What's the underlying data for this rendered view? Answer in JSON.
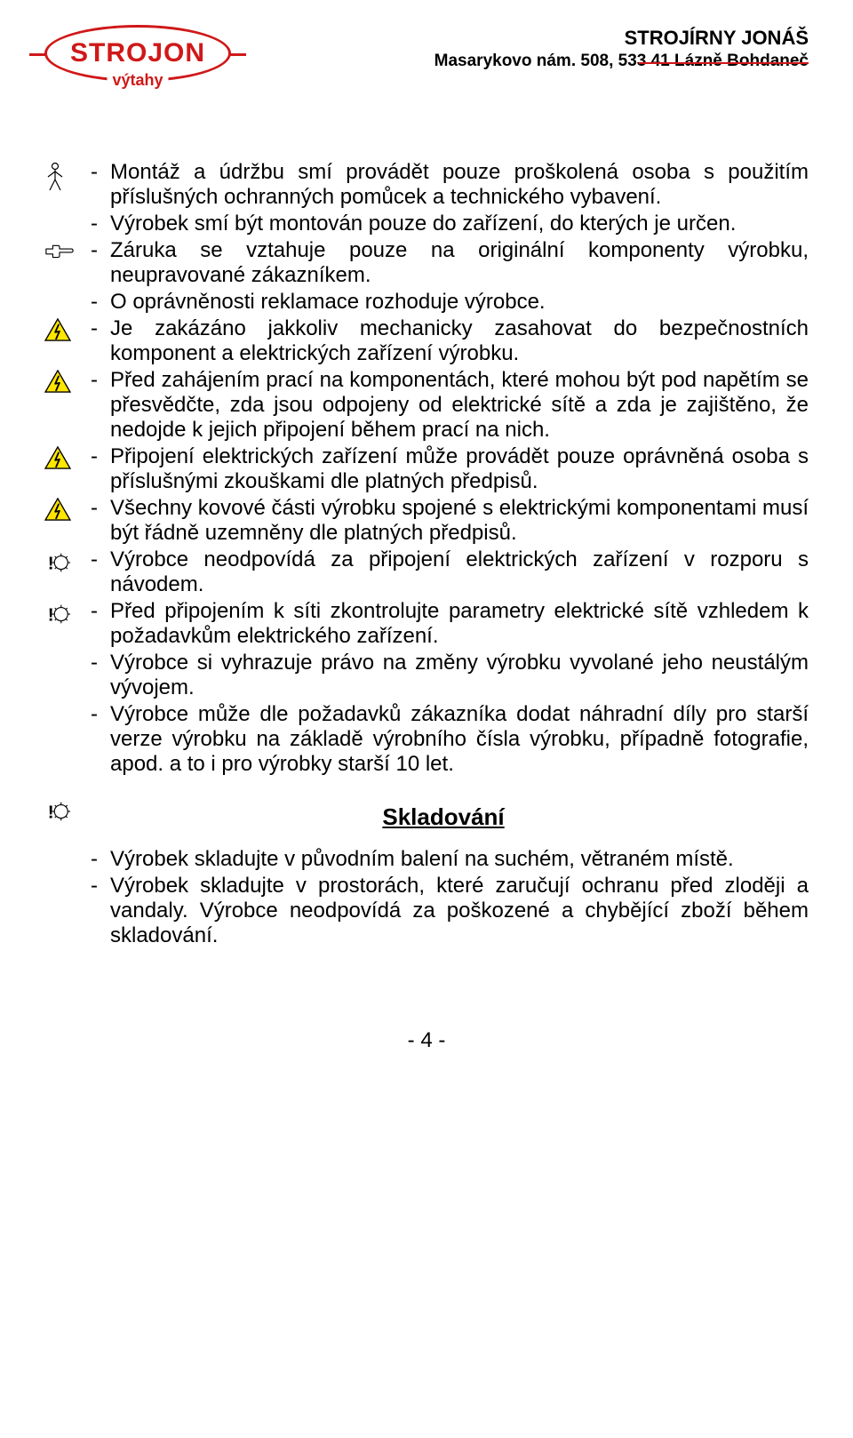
{
  "header": {
    "company": "STROJÍRNY JONÁŠ",
    "address": "Masarykovo nám. 508, 533 41 Lázně Bohdaneč",
    "logo_main": "STROJON",
    "logo_sub": "výtahy",
    "accent_color": "#d01818"
  },
  "bullets": [
    {
      "icon": "person-icon",
      "text": "Montáž a údržbu smí provádět pouze proškolená osoba s použitím příslušných ochranných pomůcek a technického vybavení."
    },
    {
      "icon": "none",
      "text": "Výrobek smí být montován pouze do zařízení, do kterých je určen."
    },
    {
      "icon": "hand-point-icon",
      "text": "Záruka se vztahuje pouze na originální komponenty výrobku, neupravované zákazníkem."
    },
    {
      "icon": "none",
      "text": "O oprávněnosti reklamace rozhoduje výrobce."
    },
    {
      "icon": "warning-bolt-icon",
      "text": "Je zakázáno jakkoliv mechanicky zasahovat do bezpečnostních komponent a elektrických zařízení výrobku."
    },
    {
      "icon": "warning-bolt-icon",
      "text": "Před zahájením prací na komponentách, které mohou být pod napětím se přesvědčte, zda jsou odpojeny od elektrické sítě a zda je zajištěno, že nedojde k jejich připojení během prací na nich."
    },
    {
      "icon": "warning-bolt-icon",
      "text": "Připojení elektrických zařízení může provádět pouze oprávněná osoba s příslušnými zkouškami dle platných předpisů."
    },
    {
      "icon": "warning-bolt-icon",
      "text": "Všechny kovové části výrobku spojené s elektrickými komponentami musí být řádně uzemněny dle platných předpisů."
    },
    {
      "icon": "gear-exclaim-icon",
      "text": "Výrobce neodpovídá za připojení elektrických zařízení v rozporu s návodem."
    },
    {
      "icon": "gear-exclaim-icon",
      "text": "Před připojením k síti zkontrolujte parametry elektrické sítě vzhledem k požadavkům elektrického zařízení."
    },
    {
      "icon": "none",
      "text": "Výrobce si vyhrazuje právo na změny výrobku vyvolané jeho neustálým vývojem."
    },
    {
      "icon": "none",
      "text": "Výrobce může dle požadavků zákazníka dodat náhradní díly pro starší verze výrobku na základě výrobního čísla výrobku, případně fotografie, apod. a to i pro výrobky starší 10 let."
    }
  ],
  "section2": {
    "title": "Skladování",
    "icon": "gear-exclaim-icon",
    "bullets": [
      {
        "text": "Výrobek skladujte v původním balení na suchém, větraném místě."
      },
      {
        "text": "Výrobek skladujte v prostorách, které zaručují ochranu před zloději a vandaly. Výrobce neodpovídá za poškozené a chybějící zboží během skladování."
      }
    ]
  },
  "footer": {
    "page": "- 4 -"
  },
  "dash": "-"
}
